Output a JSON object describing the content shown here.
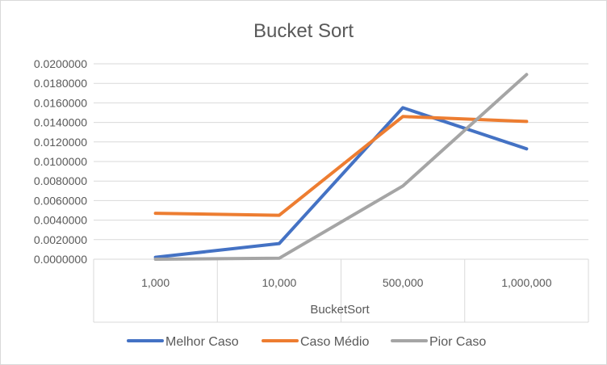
{
  "chart_data": {
    "type": "line",
    "title": "Bucket Sort",
    "xlabel": "BucketSort",
    "ylabel": "",
    "categories": [
      "1,000",
      "10,000",
      "500,000",
      "1,000,000"
    ],
    "ylim": [
      0,
      0.02
    ],
    "y_ticks": [
      "0.0000000",
      "0.0020000",
      "0.0040000",
      "0.0060000",
      "0.0080000",
      "0.0100000",
      "0.0120000",
      "0.0140000",
      "0.0160000",
      "0.0180000",
      "0.0200000"
    ],
    "grid": true,
    "legend_position": "bottom",
    "series": [
      {
        "name": "Melhor Caso",
        "color": "#4472c4",
        "values": [
          0.0002,
          0.0016,
          0.0155,
          0.0113
        ]
      },
      {
        "name": "Caso Médio",
        "color": "#ed7d31",
        "values": [
          0.0047,
          0.0045,
          0.0146,
          0.0141
        ]
      },
      {
        "name": "Pior Caso",
        "color": "#a5a5a5",
        "values": [
          0.0,
          0.0001,
          0.0075,
          0.0189
        ]
      }
    ]
  }
}
